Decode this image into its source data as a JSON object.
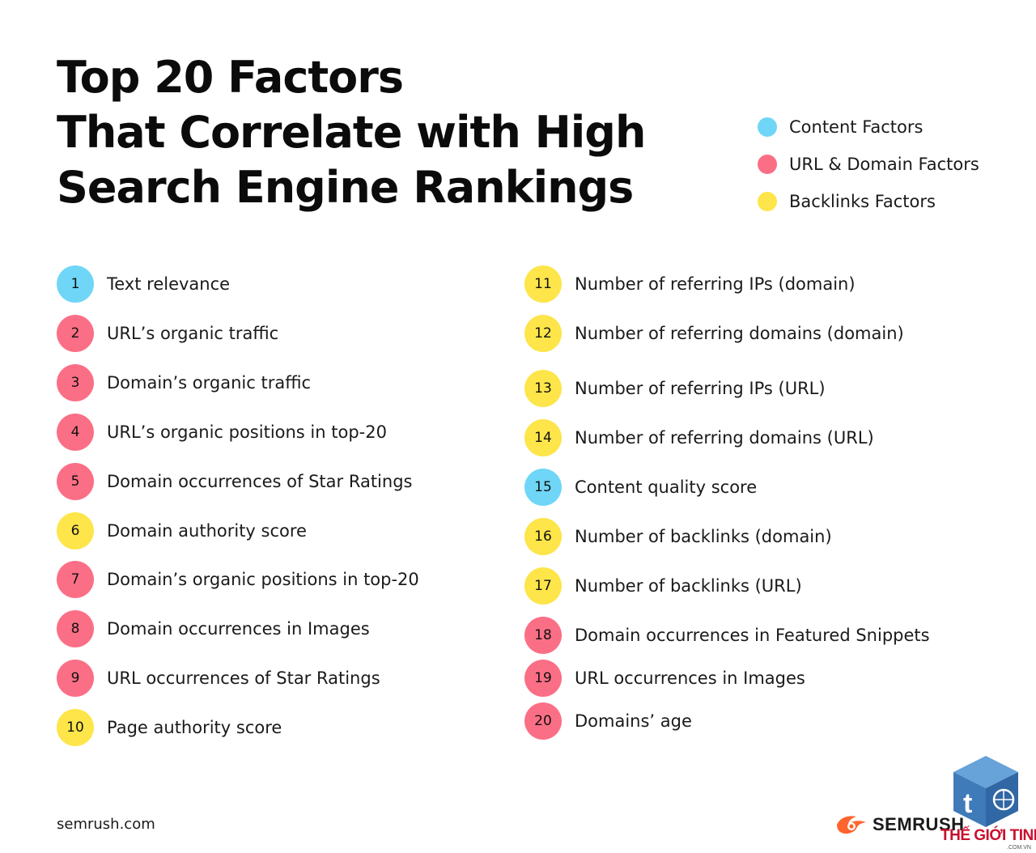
{
  "title": {
    "line1": "Top 20 Factors",
    "line2": "That Correlate with High",
    "line3": "Search Engine Rankings"
  },
  "colors": {
    "content": "#6fd6f7",
    "url_domain": "#fb6f86",
    "backlinks": "#fde54a"
  },
  "legend": [
    {
      "label": "Content Factors",
      "category": "content"
    },
    {
      "label": "URL & Domain Factors",
      "category": "url_domain"
    },
    {
      "label": "Backlinks Factors",
      "category": "backlinks"
    }
  ],
  "factors": [
    {
      "rank": "1",
      "label": "Text relevance",
      "category": "content"
    },
    {
      "rank": "2",
      "label": "URL’s organic traffic",
      "category": "url_domain"
    },
    {
      "rank": "3",
      "label": "Domain’s organic traffic",
      "category": "url_domain"
    },
    {
      "rank": "4",
      "label": "URL’s organic positions in top-20",
      "category": "url_domain"
    },
    {
      "rank": "5",
      "label": "Domain occurrences of Star Ratings",
      "category": "url_domain"
    },
    {
      "rank": "6",
      "label": "Domain authority score",
      "category": "backlinks"
    },
    {
      "rank": "7",
      "label": "Domain’s organic positions in top-20",
      "category": "url_domain"
    },
    {
      "rank": "8",
      "label": "Domain occurrences in Images",
      "category": "url_domain"
    },
    {
      "rank": "9",
      "label": "URL occurrences of Star Ratings",
      "category": "url_domain"
    },
    {
      "rank": "10",
      "label": "Page authority score",
      "category": "backlinks"
    },
    {
      "rank": "11",
      "label": "Number of referring IPs (domain)",
      "category": "backlinks"
    },
    {
      "rank": "12",
      "label": "Number of referring domains (domain)",
      "category": "backlinks"
    },
    {
      "rank": "13",
      "label": "Number of referring IPs (URL)",
      "category": "backlinks"
    },
    {
      "rank": "14",
      "label": "Number of referring domains (URL)",
      "category": "backlinks"
    },
    {
      "rank": "15",
      "label": "Content quality score",
      "category": "content"
    },
    {
      "rank": "16",
      "label": "Number of backlinks (domain)",
      "category": "backlinks"
    },
    {
      "rank": "17",
      "label": "Number of backlinks (URL)",
      "category": "backlinks"
    },
    {
      "rank": "18",
      "label": "Domain occurrences in Featured Snippets",
      "category": "url_domain"
    },
    {
      "rank": "19",
      "label": "URL occurrences in Images",
      "category": "url_domain"
    },
    {
      "rank": "20",
      "label": "Domains’ age",
      "category": "url_domain"
    }
  ],
  "footer": {
    "site": "semrush.com",
    "brand": "SEMRUSH",
    "brand_color": "#ff642d",
    "watermark": "THẾ GIỚI TINHỌC",
    "watermark_sub": ".COM.VN"
  }
}
